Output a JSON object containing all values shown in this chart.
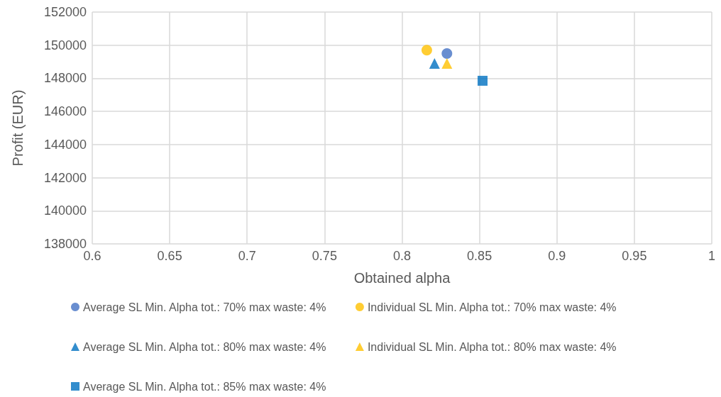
{
  "chart_data": {
    "type": "scatter",
    "xlabel": "Obtained alpha",
    "ylabel": "Profit (EUR)",
    "xlim": [
      0.6,
      1
    ],
    "xticks": [
      0.6,
      0.65,
      0.7,
      0.75,
      0.8,
      0.85,
      0.9,
      0.95,
      1
    ],
    "ylim": [
      138000,
      152000
    ],
    "yticks": [
      138000,
      140000,
      142000,
      144000,
      146000,
      148000,
      150000,
      152000
    ],
    "grid": true,
    "legend": "bottom",
    "series": [
      {
        "name": "Average SL Min. Alpha tot.: 70% max waste: 4%",
        "color": "#4472c4",
        "marker": "circle",
        "x": [
          0.829
        ],
        "values": [
          149500
        ]
      },
      {
        "name": "Individual SL Min. Alpha tot.: 70% max waste: 4%",
        "color": "#ffc000",
        "marker": "circle",
        "x": [
          0.816
        ],
        "values": [
          149700
        ]
      },
      {
        "name": "Average SL Min. Alpha tot.: 80% max waste: 4%",
        "color": "#0070c0",
        "marker": "triangle",
        "x": [
          0.821
        ],
        "values": [
          148900
        ]
      },
      {
        "name": "Individual SL Min. Alpha tot.: 80% max waste: 4%",
        "color": "#ffc000",
        "marker": "triangle",
        "x": [
          0.829
        ],
        "values": [
          148900
        ]
      },
      {
        "name": "Average SL Min. Alpha tot.: 85% max waste: 4%",
        "color": "#0070c0",
        "marker": "square",
        "x": [
          0.852
        ],
        "values": [
          147850
        ]
      }
    ]
  }
}
